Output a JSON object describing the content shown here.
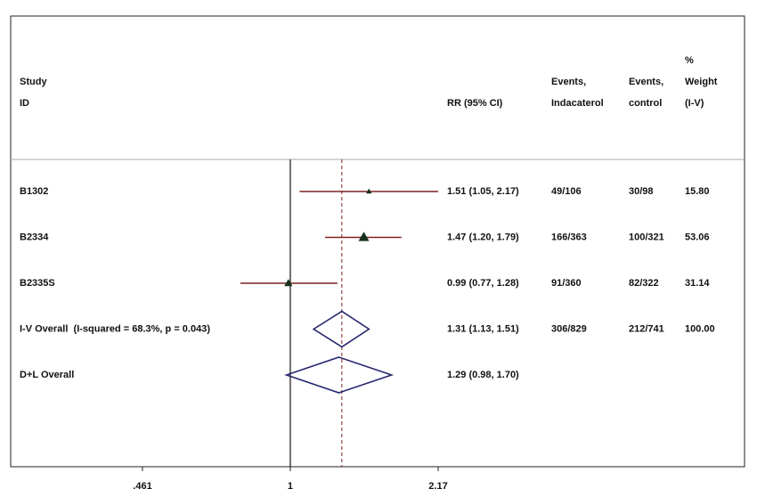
{
  "chart_data": {
    "type": "forest",
    "log_x": true,
    "headers": {
      "study": "Study",
      "id": "ID",
      "rr": "RR (95% CI)",
      "events_indacaterol": [
        "Events,",
        "Indacaterol"
      ],
      "events_control": [
        "Events,",
        "control"
      ],
      "weight": [
        "%",
        "Weight",
        "(I-V)"
      ]
    },
    "xlim": [
      0.461,
      2.17
    ],
    "xticks": [
      {
        "value": 0.461,
        "label": ".461"
      },
      1,
      2.17
    ],
    "null_line": 1,
    "overall_line": 1.31,
    "ci_color": "#7e2222",
    "marker_color": "#17301a",
    "diamond_color": "#26266e",
    "rows": [
      {
        "name": "B1302",
        "kind": "study",
        "rr": 1.51,
        "ci": [
          1.05,
          2.17
        ],
        "rr_label": "1.51 (1.05, 2.17)",
        "events_indacaterol": "49/106",
        "events_control": "30/98",
        "weight": 15.8,
        "weight_label": "15.80"
      },
      {
        "name": "B2334",
        "kind": "study",
        "rr": 1.47,
        "ci": [
          1.2,
          1.79
        ],
        "rr_label": "1.47 (1.20, 1.79)",
        "events_indacaterol": "166/363",
        "events_control": "100/321",
        "weight": 53.06,
        "weight_label": "53.06"
      },
      {
        "name": "B2335S",
        "kind": "study",
        "rr": 0.99,
        "ci": [
          0.77,
          1.28
        ],
        "rr_label": "0.99 (0.77, 1.28)",
        "events_indacaterol": "91/360",
        "events_control": "82/322",
        "weight": 31.14,
        "weight_label": "31.14"
      },
      {
        "name": "I-V Overall  (I-squared = 68.3%, p = 0.043)",
        "kind": "overall",
        "rr": 1.31,
        "ci": [
          1.13,
          1.51
        ],
        "rr_label": "1.31 (1.13, 1.51)",
        "events_indacaterol": "306/829",
        "events_control": "212/741",
        "weight": 100,
        "weight_label": "100.00"
      },
      {
        "name": "D+L Overall",
        "kind": "overall",
        "rr": 1.29,
        "ci": [
          0.98,
          1.7
        ],
        "rr_label": "1.29 (0.98, 1.70)"
      }
    ]
  }
}
